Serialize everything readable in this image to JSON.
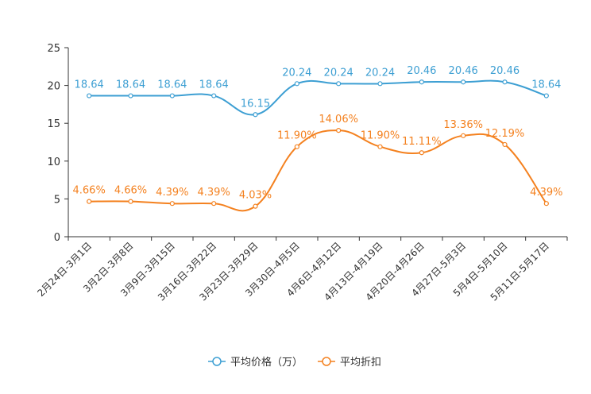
{
  "chart_data": {
    "type": "line",
    "categories": [
      "2月24日-3月1日",
      "3月2日-3月8日",
      "3月9日-3月15日",
      "3月16日-3月22日",
      "3月23日-3月29日",
      "3月30日-4月5日",
      "4月6日-4月12日",
      "4月13日-4月19日",
      "4月20日-4月26日",
      "4月27日-5月3日",
      "5月4日-5月10日",
      "5月11日-5月17日"
    ],
    "ylim": [
      0,
      25
    ],
    "yticks": [
      "0",
      "5",
      "10",
      "15",
      "20",
      "25"
    ],
    "series": [
      {
        "name": "平均价格（万）",
        "color": "#3d9fd3",
        "values": [
          18.64,
          18.64,
          18.64,
          18.64,
          16.15,
          20.24,
          20.24,
          20.24,
          20.46,
          20.46,
          20.46,
          18.64
        ],
        "labels": [
          "18.64",
          "18.64",
          "18.64",
          "18.64",
          "16.15",
          "20.24",
          "20.24",
          "20.24",
          "20.46",
          "20.46",
          "20.46",
          "18.64"
        ]
      },
      {
        "name": "平均折扣",
        "color": "#f4811f",
        "values": [
          4.66,
          4.66,
          4.39,
          4.39,
          4.03,
          11.9,
          14.06,
          11.9,
          11.11,
          13.36,
          12.19,
          4.39
        ],
        "labels": [
          "4.66%",
          "4.66%",
          "4.39%",
          "4.39%",
          "4.03%",
          "11.90%",
          "14.06%",
          "11.90%",
          "11.11%",
          "13.36%",
          "12.19%",
          "4.39%"
        ]
      }
    ]
  }
}
